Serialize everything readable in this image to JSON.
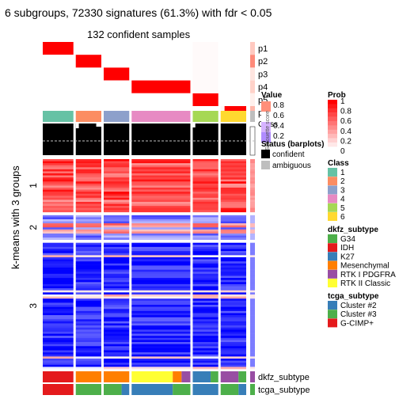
{
  "chart_data": {
    "type": "heatmap",
    "title": "6 subgroups, 72330 signatures (61.3%) with fdr < 0.05",
    "subtitle": "132 confident samples",
    "row_axis_label": "k-means with 3 groups",
    "row_groups": [
      "1",
      "2",
      "3"
    ],
    "row_group_fractions": [
      0.26,
      0.12,
      0.62
    ],
    "column_groups": [
      "1",
      "2",
      "3",
      "4",
      "5",
      "6"
    ],
    "column_group_sizes": [
      12,
      10,
      10,
      23,
      10,
      10
    ],
    "membership_rows": [
      "p1",
      "p2",
      "p3",
      "p4",
      "p5",
      "p6"
    ],
    "membership_overlap_label": "Class",
    "silhouette_label": "Silhouette score",
    "bottom_annotations": [
      "dkfz_subtype",
      "tcga_subtype"
    ],
    "dkfz_by_group": [
      [
        "IDH"
      ],
      [
        "Mesenchymal"
      ],
      [
        "Mesenchymal"
      ],
      [
        "RTK II Classic",
        "Mesenchymal",
        "RTK I PDGFRA"
      ],
      [
        "K27",
        "G34"
      ],
      [
        "RTK I PDGFRA",
        "G34"
      ]
    ],
    "tcga_by_group": [
      [
        "G-CIMP+"
      ],
      [
        "Cluster #3"
      ],
      [
        "Cluster #3",
        "Cluster #2"
      ],
      [
        "Cluster #2",
        "Cluster #3"
      ],
      [
        "Cluster #2"
      ],
      [
        "Cluster #3",
        "Cluster #2"
      ]
    ],
    "legends": {
      "value": {
        "title": "Value",
        "ticks": [
          "0.8",
          "0.6",
          "0.4",
          "0.2"
        ]
      },
      "prob": {
        "title": "Prob",
        "ticks": [
          "1",
          "0.8",
          "0.6",
          "0.4",
          "0.2",
          "0"
        ]
      },
      "silhouette": {
        "title": "Status (barplots)",
        "items": [
          {
            "label": "confident",
            "color": "#000000"
          },
          {
            "label": "ambiguous",
            "color": "#bebebe"
          }
        ]
      },
      "class": {
        "title": "Class",
        "items": [
          {
            "label": "1",
            "color": "#66c2a5"
          },
          {
            "label": "2",
            "color": "#fc8d62"
          },
          {
            "label": "3",
            "color": "#8da0cb"
          },
          {
            "label": "4",
            "color": "#e78ac3"
          },
          {
            "label": "5",
            "color": "#a6d854"
          },
          {
            "label": "6",
            "color": "#ffd92f"
          }
        ]
      },
      "dkfz": {
        "title": "dkfz_subtype",
        "items": [
          {
            "label": "G34",
            "color": "#4daf4a"
          },
          {
            "label": "IDH",
            "color": "#e41a1c"
          },
          {
            "label": "K27",
            "color": "#377eb8"
          },
          {
            "label": "Mesenchymal",
            "color": "#ff7f00"
          },
          {
            "label": "RTK I PDGFRA",
            "color": "#984ea3"
          },
          {
            "label": "RTK II Classic",
            "color": "#ffff33"
          }
        ]
      },
      "tcga": {
        "title": "tcga_subtype",
        "items": [
          {
            "label": "Cluster #2",
            "color": "#377eb8"
          },
          {
            "label": "Cluster #3",
            "color": "#4daf4a"
          },
          {
            "label": "G-CIMP+",
            "color": "#e41a1c"
          }
        ]
      }
    },
    "colors": {
      "heat_high": "#ff0000",
      "heat_mid": "#ffffff",
      "heat_low": "#0000ff",
      "prob_high": "#ff0000",
      "prob_low": "#ffffff"
    }
  }
}
